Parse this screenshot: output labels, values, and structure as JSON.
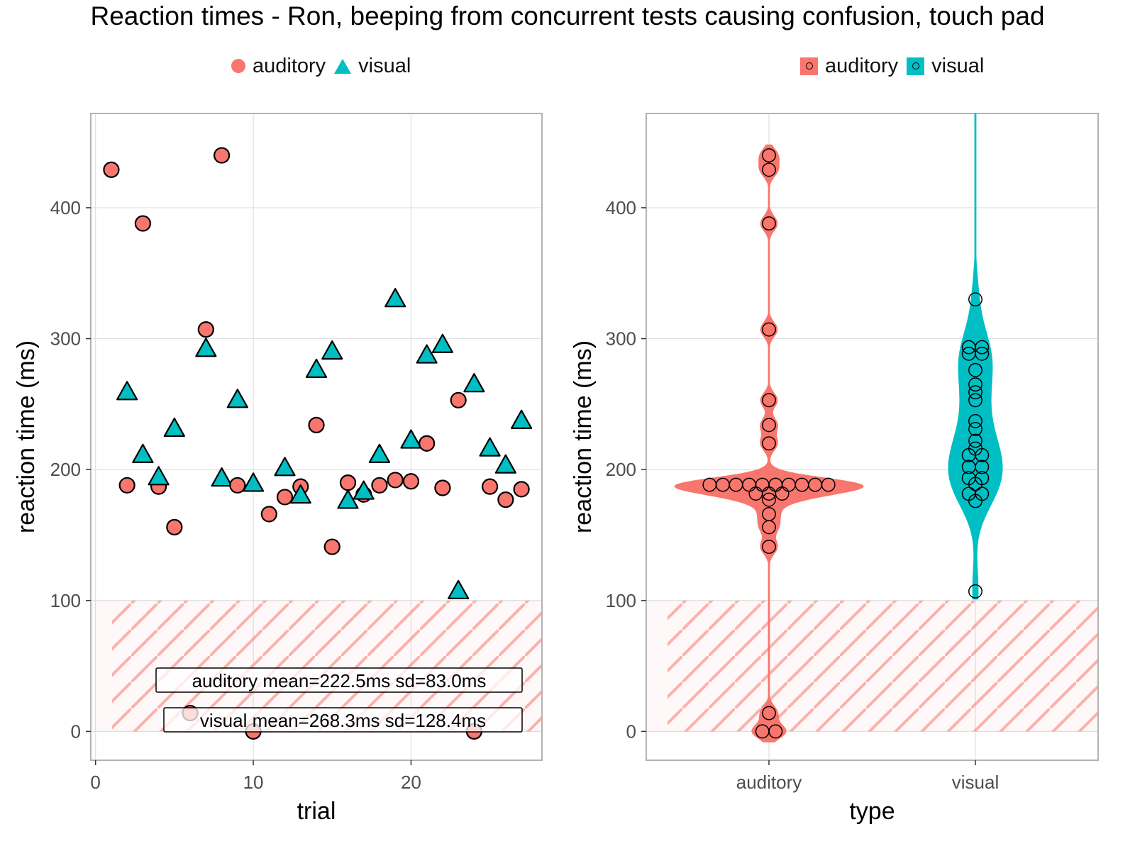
{
  "title": "Reaction times - Ron, beeping from concurrent tests causing confusion, touch pad",
  "colors": {
    "auditory": "#F8766D",
    "visual": "#00BFC4",
    "hatch": "#F8766D",
    "grid": "#e0e0e0",
    "frame": "#b3b3b3"
  },
  "legend_left": {
    "items": [
      {
        "label": "auditory",
        "shape": "circle"
      },
      {
        "label": "visual",
        "shape": "triangle"
      }
    ]
  },
  "legend_right": {
    "items": [
      {
        "label": "auditory"
      },
      {
        "label": "visual"
      }
    ]
  },
  "chart_data": [
    {
      "type": "scatter",
      "xlabel": "trial",
      "ylabel": "reaction time (ms)",
      "xlim": [
        -0.3,
        28.3
      ],
      "ylim": [
        -22,
        472
      ],
      "xticks": [
        0,
        10,
        20
      ],
      "yticks": [
        0,
        100,
        200,
        300,
        400
      ],
      "shaded_region": {
        "y_from": 0,
        "y_to": 100,
        "pattern": "diagonal hatch"
      },
      "series": [
        {
          "name": "auditory",
          "shape": "circle",
          "points": [
            [
              1,
              429
            ],
            [
              2,
              188
            ],
            [
              3,
              388
            ],
            [
              4,
              187
            ],
            [
              5,
              156
            ],
            [
              6,
              14
            ],
            [
              7,
              307
            ],
            [
              8,
              440
            ],
            [
              9,
              188
            ],
            [
              10,
              0
            ],
            [
              11,
              166
            ],
            [
              12,
              179
            ],
            [
              13,
              187
            ],
            [
              14,
              234
            ],
            [
              15,
              141
            ],
            [
              16,
              190
            ],
            [
              17,
              181
            ],
            [
              18,
              188
            ],
            [
              19,
              192
            ],
            [
              20,
              191
            ],
            [
              21,
              220
            ],
            [
              22,
              186
            ],
            [
              23,
              253
            ],
            [
              24,
              0
            ],
            [
              25,
              187
            ],
            [
              26,
              177
            ],
            [
              27,
              185
            ]
          ]
        },
        {
          "name": "visual",
          "shape": "triangle",
          "points": [
            [
              2,
              259
            ],
            [
              3,
              211
            ],
            [
              4,
              194
            ],
            [
              5,
              231
            ],
            [
              7,
              292
            ],
            [
              8,
              193
            ],
            [
              9,
              253
            ],
            [
              10,
              189
            ],
            [
              12,
              201
            ],
            [
              13,
              180
            ],
            [
              14,
              276
            ],
            [
              15,
              290
            ],
            [
              16,
              176
            ],
            [
              17,
              183
            ],
            [
              18,
              211
            ],
            [
              19,
              330
            ],
            [
              20,
              222
            ],
            [
              21,
              287
            ],
            [
              22,
              295
            ],
            [
              23,
              107
            ],
            [
              24,
              265
            ],
            [
              25,
              216
            ],
            [
              26,
              203
            ],
            [
              27,
              237
            ]
          ]
        }
      ],
      "annotations": [
        "auditory mean=222.5ms sd=83.0ms",
        "visual mean=268.3ms sd=128.4ms"
      ]
    },
    {
      "type": "violin",
      "xlabel": "type",
      "ylabel": "reaction time (ms)",
      "categories": [
        "auditory",
        "visual"
      ],
      "ylim": [
        -22,
        472
      ],
      "yticks": [
        0,
        100,
        200,
        300,
        400
      ],
      "shaded_region": {
        "y_from": 0,
        "y_to": 100,
        "pattern": "diagonal hatch"
      },
      "series": [
        {
          "name": "auditory",
          "values": [
            429,
            188,
            388,
            187,
            156,
            14,
            307,
            440,
            188,
            0,
            166,
            179,
            187,
            234,
            141,
            190,
            181,
            188,
            192,
            191,
            220,
            186,
            253,
            0,
            187,
            177,
            185
          ]
        },
        {
          "name": "visual",
          "values": [
            259,
            211,
            194,
            231,
            292,
            193,
            253,
            189,
            201,
            180,
            276,
            290,
            176,
            183,
            211,
            330,
            222,
            287,
            295,
            107,
            265,
            216,
            203,
            237
          ]
        }
      ]
    }
  ]
}
